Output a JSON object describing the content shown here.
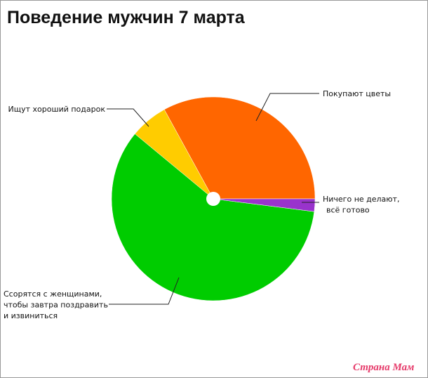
{
  "chart_data": {
    "type": "pie",
    "title": "Поведение мужчин 7 марта",
    "categories": [
      "Покупают цветы",
      "Ищут хороший подарок",
      "Ссорятся с женщинами, чтобы завтра поздравить и извиниться",
      "Ничего не делают, всё готово"
    ],
    "values": [
      33,
      6,
      59,
      2
    ],
    "colors": [
      "#ff6600",
      "#ffcc00",
      "#00cc00",
      "#9933cc"
    ]
  },
  "watermark": "Страна Мам"
}
